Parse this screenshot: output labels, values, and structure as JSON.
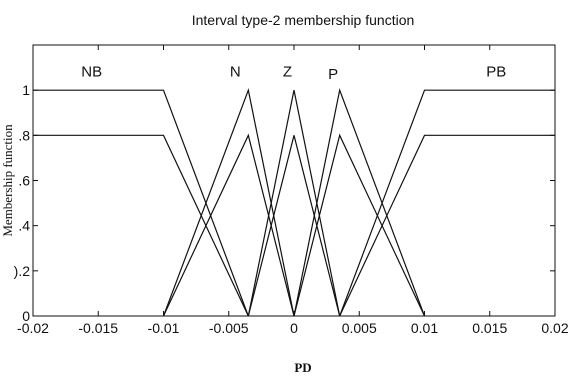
{
  "chart_data": {
    "type": "line",
    "title": "Interval type-2 membership function",
    "xlabel": "PD",
    "ylabel": "Membership function",
    "xlim": [
      -0.02,
      0.02
    ],
    "ylim": [
      0,
      1.2
    ],
    "x_ticks": [
      -0.02,
      -0.015,
      -0.01,
      -0.005,
      0,
      0.005,
      0.01,
      0.015,
      0.02
    ],
    "x_tick_labels": [
      "-0.02",
      "-0.015",
      "-0.01",
      "-0.005",
      "0",
      "0.005",
      "0.01",
      "0.015",
      "0.02"
    ],
    "y_ticks": [
      0,
      0.2,
      0.4,
      0.6,
      0.8,
      1
    ],
    "y_tick_labels": [
      "0",
      ").2",
      ".4",
      ".6",
      ".8",
      "1"
    ],
    "grid": false,
    "line_color": "#111111",
    "series": [
      {
        "name": "NB",
        "label": "NB",
        "label_x": -0.0155,
        "label_y": 1.06,
        "upper": {
          "x": [
            -0.02,
            -0.01,
            -0.0035
          ],
          "y": [
            1,
            1,
            0
          ]
        },
        "lower": {
          "x": [
            -0.02,
            -0.01,
            -0.0035
          ],
          "y": [
            0.8,
            0.8,
            0
          ]
        }
      },
      {
        "name": "N",
        "label": "N",
        "label_x": -0.0045,
        "label_y": 1.06,
        "upper": {
          "x": [
            -0.01,
            -0.0035,
            0
          ],
          "y": [
            0,
            1,
            0
          ]
        },
        "lower": {
          "x": [
            -0.01,
            -0.0035,
            0
          ],
          "y": [
            0,
            0.8,
            0
          ]
        }
      },
      {
        "name": "Z",
        "label": "Z",
        "label_x": -0.0005,
        "label_y": 1.06,
        "upper": {
          "x": [
            -0.0035,
            0,
            0.0035
          ],
          "y": [
            0,
            1,
            0
          ]
        },
        "lower": {
          "x": [
            -0.0035,
            0,
            0.0035
          ],
          "y": [
            0,
            0.8,
            0
          ]
        }
      },
      {
        "name": "P",
        "label": "P",
        "label_x": 0.003,
        "label_y": 1.05,
        "upper": {
          "x": [
            0,
            0.0035,
            0.01
          ],
          "y": [
            0,
            1,
            0
          ]
        },
        "lower": {
          "x": [
            0,
            0.0035,
            0.01
          ],
          "y": [
            0,
            0.8,
            0
          ]
        }
      },
      {
        "name": "PB",
        "label": "PB",
        "label_x": 0.0155,
        "label_y": 1.06,
        "upper": {
          "x": [
            0.0035,
            0.01,
            0.02
          ],
          "y": [
            0,
            1,
            1
          ]
        },
        "lower": {
          "x": [
            0.0035,
            0.01,
            0.02
          ],
          "y": [
            0,
            0.8,
            0.8
          ]
        }
      }
    ]
  }
}
